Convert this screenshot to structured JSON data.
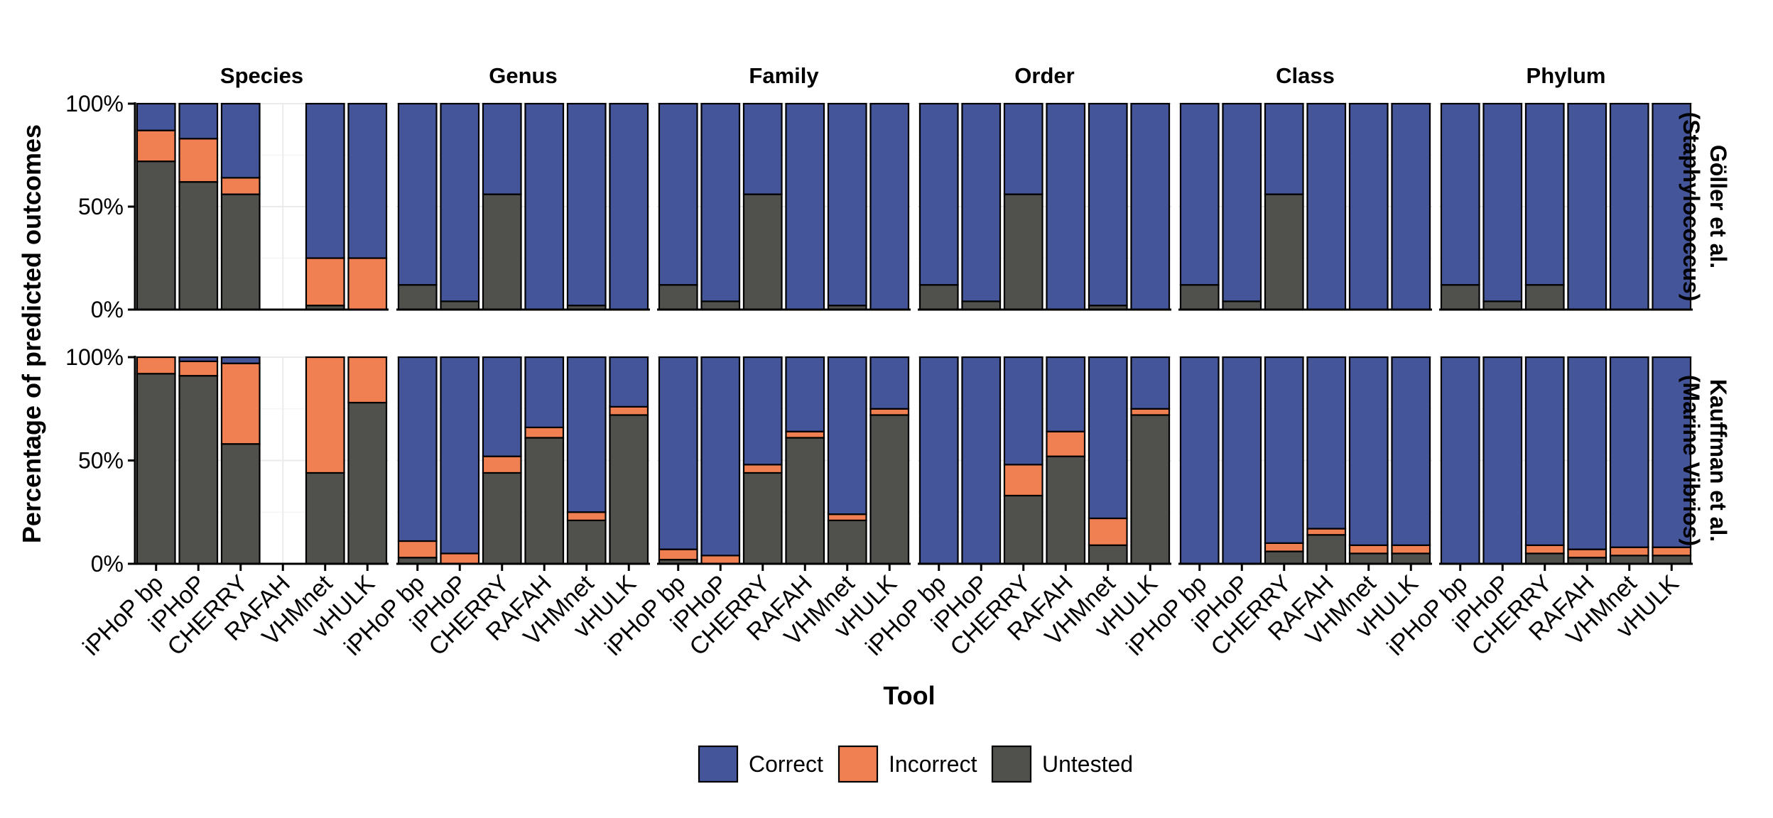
{
  "chart_data": {
    "type": "bar",
    "stacked": true,
    "xlabel": "Tool",
    "ylabel": "Percentage of predicted outcomes",
    "y_ticks": [
      "0%",
      "50%",
      "100%"
    ],
    "tools": [
      "iPHoP bp",
      "iPHoP",
      "CHERRY",
      "RAFAH",
      "VHMnet",
      "vHULK"
    ],
    "columns": [
      "Species",
      "Genus",
      "Family",
      "Order",
      "Class",
      "Phylum"
    ],
    "rows": [
      {
        "label_line1": "Göller et al.",
        "label_line2": "(Staphylococcus)"
      },
      {
        "label_line1": "Kauffman et al.",
        "label_line2": "(Marine Vibrios)"
      }
    ],
    "legend": {
      "position": "bottom",
      "items": [
        {
          "key": "correct",
          "label": "Correct",
          "color": "#45559A"
        },
        {
          "key": "incorrect",
          "label": "Incorrect",
          "color": "#F07F52"
        },
        {
          "key": "untested",
          "label": "Untested",
          "color": "#50514C"
        }
      ]
    },
    "panels": [
      {
        "row": 0,
        "col": 0,
        "bars": [
          {
            "untested": 72,
            "incorrect": 15,
            "correct": 13
          },
          {
            "untested": 62,
            "incorrect": 21,
            "correct": 17
          },
          {
            "untested": 56,
            "incorrect": 8,
            "correct": 36
          },
          null,
          {
            "untested": 2,
            "incorrect": 23,
            "correct": 75
          },
          {
            "untested": 0,
            "incorrect": 25,
            "correct": 75
          }
        ]
      },
      {
        "row": 0,
        "col": 1,
        "bars": [
          {
            "untested": 12,
            "incorrect": 0,
            "correct": 88
          },
          {
            "untested": 4,
            "incorrect": 0,
            "correct": 96
          },
          {
            "untested": 56,
            "incorrect": 0,
            "correct": 44
          },
          {
            "untested": 0,
            "incorrect": 0,
            "correct": 100
          },
          {
            "untested": 2,
            "incorrect": 0,
            "correct": 98
          },
          {
            "untested": 0,
            "incorrect": 0,
            "correct": 100
          }
        ]
      },
      {
        "row": 0,
        "col": 2,
        "bars": [
          {
            "untested": 12,
            "incorrect": 0,
            "correct": 88
          },
          {
            "untested": 4,
            "incorrect": 0,
            "correct": 96
          },
          {
            "untested": 56,
            "incorrect": 0,
            "correct": 44
          },
          {
            "untested": 0,
            "incorrect": 0,
            "correct": 100
          },
          {
            "untested": 2,
            "incorrect": 0,
            "correct": 98
          },
          {
            "untested": 0,
            "incorrect": 0,
            "correct": 100
          }
        ]
      },
      {
        "row": 0,
        "col": 3,
        "bars": [
          {
            "untested": 12,
            "incorrect": 0,
            "correct": 88
          },
          {
            "untested": 4,
            "incorrect": 0,
            "correct": 96
          },
          {
            "untested": 56,
            "incorrect": 0,
            "correct": 44
          },
          {
            "untested": 0,
            "incorrect": 0,
            "correct": 100
          },
          {
            "untested": 2,
            "incorrect": 0,
            "correct": 98
          },
          {
            "untested": 0,
            "incorrect": 0,
            "correct": 100
          }
        ]
      },
      {
        "row": 0,
        "col": 4,
        "bars": [
          {
            "untested": 12,
            "incorrect": 0,
            "correct": 88
          },
          {
            "untested": 4,
            "incorrect": 0,
            "correct": 96
          },
          {
            "untested": 56,
            "incorrect": 0,
            "correct": 44
          },
          {
            "untested": 0,
            "incorrect": 0,
            "correct": 100
          },
          {
            "untested": 0,
            "incorrect": 0,
            "correct": 100
          },
          {
            "untested": 0,
            "incorrect": 0,
            "correct": 100
          }
        ]
      },
      {
        "row": 0,
        "col": 5,
        "bars": [
          {
            "untested": 12,
            "incorrect": 0,
            "correct": 88
          },
          {
            "untested": 4,
            "incorrect": 0,
            "correct": 96
          },
          {
            "untested": 12,
            "incorrect": 0,
            "correct": 88
          },
          {
            "untested": 0,
            "incorrect": 0,
            "correct": 100
          },
          {
            "untested": 0,
            "incorrect": 0,
            "correct": 100
          },
          {
            "untested": 0,
            "incorrect": 0,
            "correct": 100
          }
        ]
      },
      {
        "row": 1,
        "col": 0,
        "bars": [
          {
            "untested": 92,
            "incorrect": 8,
            "correct": 0
          },
          {
            "untested": 91,
            "incorrect": 7,
            "correct": 2
          },
          {
            "untested": 58,
            "incorrect": 39,
            "correct": 3
          },
          null,
          {
            "untested": 44,
            "incorrect": 56,
            "correct": 0
          },
          {
            "untested": 78,
            "incorrect": 22,
            "correct": 0
          }
        ]
      },
      {
        "row": 1,
        "col": 1,
        "bars": [
          {
            "untested": 3,
            "incorrect": 8,
            "correct": 89
          },
          {
            "untested": 0,
            "incorrect": 5,
            "correct": 95
          },
          {
            "untested": 44,
            "incorrect": 8,
            "correct": 48
          },
          {
            "untested": 61,
            "incorrect": 5,
            "correct": 34
          },
          {
            "untested": 21,
            "incorrect": 4,
            "correct": 75
          },
          {
            "untested": 72,
            "incorrect": 4,
            "correct": 24
          }
        ]
      },
      {
        "row": 1,
        "col": 2,
        "bars": [
          {
            "untested": 2,
            "incorrect": 5,
            "correct": 93
          },
          {
            "untested": 0,
            "incorrect": 4,
            "correct": 96
          },
          {
            "untested": 44,
            "incorrect": 4,
            "correct": 52
          },
          {
            "untested": 61,
            "incorrect": 3,
            "correct": 36
          },
          {
            "untested": 21,
            "incorrect": 3,
            "correct": 76
          },
          {
            "untested": 72,
            "incorrect": 3,
            "correct": 25
          }
        ]
      },
      {
        "row": 1,
        "col": 3,
        "bars": [
          {
            "untested": 0,
            "incorrect": 0,
            "correct": 100
          },
          {
            "untested": 0,
            "incorrect": 0,
            "correct": 100
          },
          {
            "untested": 33,
            "incorrect": 15,
            "correct": 52
          },
          {
            "untested": 52,
            "incorrect": 12,
            "correct": 36
          },
          {
            "untested": 9,
            "incorrect": 13,
            "correct": 78
          },
          {
            "untested": 72,
            "incorrect": 3,
            "correct": 25
          }
        ]
      },
      {
        "row": 1,
        "col": 4,
        "bars": [
          {
            "untested": 0,
            "incorrect": 0,
            "correct": 100
          },
          {
            "untested": 0,
            "incorrect": 0,
            "correct": 100
          },
          {
            "untested": 6,
            "incorrect": 4,
            "correct": 90
          },
          {
            "untested": 14,
            "incorrect": 3,
            "correct": 83
          },
          {
            "untested": 5,
            "incorrect": 4,
            "correct": 91
          },
          {
            "untested": 5,
            "incorrect": 4,
            "correct": 91
          }
        ]
      },
      {
        "row": 1,
        "col": 5,
        "bars": [
          {
            "untested": 0,
            "incorrect": 0,
            "correct": 100
          },
          {
            "untested": 0,
            "incorrect": 0,
            "correct": 100
          },
          {
            "untested": 5,
            "incorrect": 4,
            "correct": 91
          },
          {
            "untested": 3,
            "incorrect": 4,
            "correct": 93
          },
          {
            "untested": 4,
            "incorrect": 4,
            "correct": 92
          },
          {
            "untested": 4,
            "incorrect": 4,
            "correct": 92
          }
        ]
      }
    ]
  }
}
